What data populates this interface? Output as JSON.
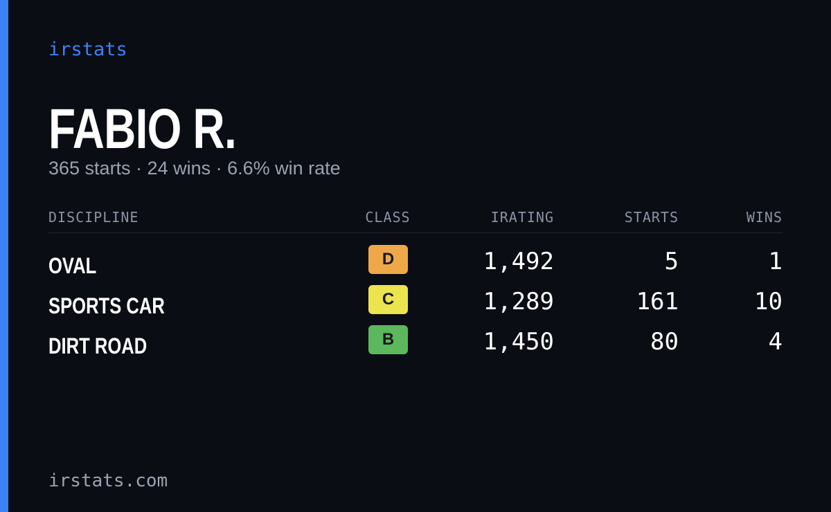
{
  "brand": "irstats",
  "driver": {
    "name": "FABIO R.",
    "summary": "365 starts · 24 wins · 6.6% win rate"
  },
  "table": {
    "headers": [
      "DISCIPLINE",
      "CLASS",
      "IRATING",
      "STARTS",
      "WINS"
    ],
    "rows": [
      {
        "discipline": "OVAL",
        "class": "D",
        "class_color": "#eea84a",
        "irating": "1,492",
        "starts": 5,
        "wins": 1
      },
      {
        "discipline": "SPORTS CAR",
        "class": "C",
        "class_color": "#ece44e",
        "irating": "1,289",
        "starts": 161,
        "wins": 10
      },
      {
        "discipline": "DIRT ROAD",
        "class": "B",
        "class_color": "#5cb85c",
        "irating": "1,450",
        "starts": 80,
        "wins": 4
      }
    ]
  },
  "footer": "irstats.com"
}
